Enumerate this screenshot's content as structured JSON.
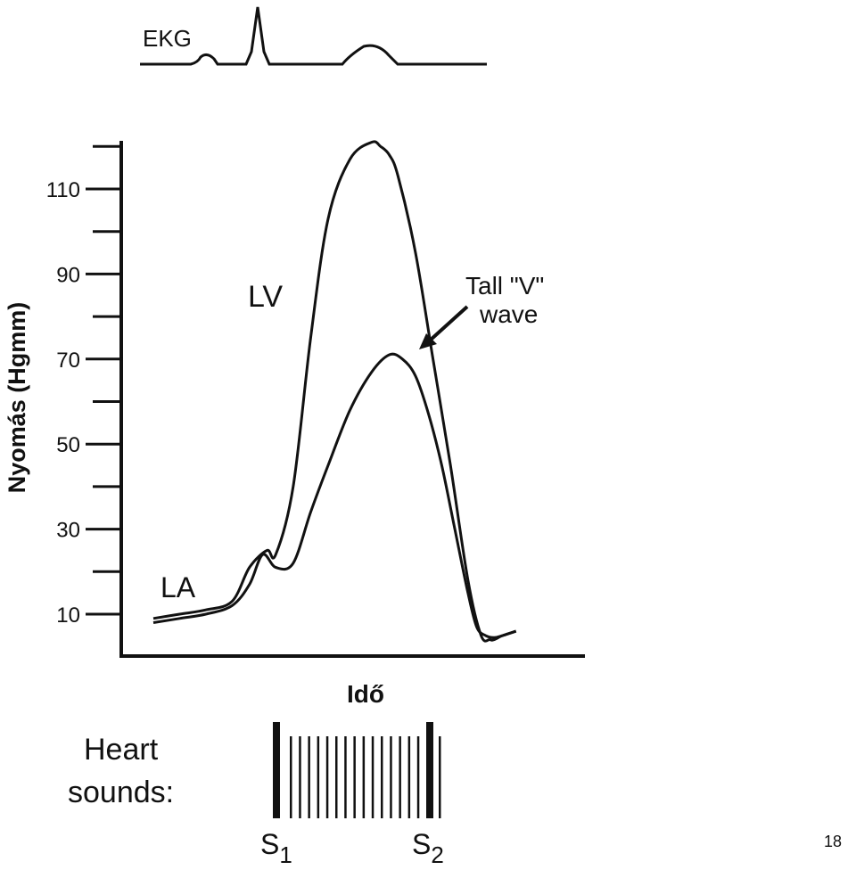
{
  "chart_data": {
    "type": "line",
    "title": "",
    "xlabel": "Idő",
    "ylabel": "Nyomás (Hgmm)",
    "ylim": [
      0,
      120
    ],
    "y_ticks": [
      10,
      30,
      50,
      70,
      90,
      110
    ],
    "grid": false,
    "series": [
      {
        "name": "LV",
        "x": [
          0,
          6,
          12,
          18,
          22,
          26,
          28,
          32,
          36,
          40,
          45,
          50,
          52,
          54,
          56,
          60,
          64,
          68,
          72,
          75,
          77,
          78,
          80,
          83
        ],
        "values": [
          9,
          10,
          11,
          13,
          21,
          25,
          24,
          40,
          75,
          103,
          117,
          121,
          120,
          118,
          113,
          95,
          70,
          45,
          18,
          5,
          4,
          4,
          5,
          6
        ]
      },
      {
        "name": "LA",
        "x": [
          0,
          6,
          12,
          18,
          22,
          25,
          28,
          32,
          36,
          40,
          45,
          50,
          54,
          57,
          60,
          63,
          66,
          69,
          72,
          74,
          76,
          78,
          80,
          83
        ],
        "values": [
          8,
          9,
          10,
          12,
          17,
          24,
          21,
          22,
          34,
          45,
          58,
          67,
          71,
          70,
          66,
          57,
          45,
          30,
          15,
          7,
          5,
          4.5,
          5,
          6
        ]
      }
    ],
    "annotations": {
      "ekg_label": "EKG",
      "lv_label": "LV",
      "la_label": "LA",
      "v_wave_line1": "Tall \"V\"",
      "v_wave_line2": "wave",
      "heart_sounds_line1": "Heart",
      "heart_sounds_line2": "sounds:",
      "s1_base": "S",
      "s1_sub": "1",
      "s2_base": "S",
      "s2_sub": "2"
    },
    "page_number": "18"
  }
}
